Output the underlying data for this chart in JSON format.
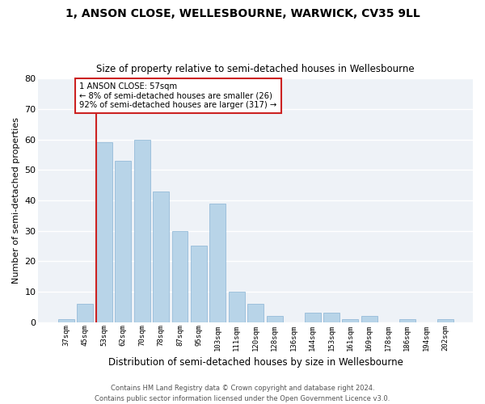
{
  "title": "1, ANSON CLOSE, WELLESBOURNE, WARWICK, CV35 9LL",
  "subtitle": "Size of property relative to semi-detached houses in Wellesbourne",
  "xlabel": "Distribution of semi-detached houses by size in Wellesbourne",
  "ylabel": "Number of semi-detached properties",
  "categories": [
    "37sqm",
    "45sqm",
    "53sqm",
    "62sqm",
    "70sqm",
    "78sqm",
    "87sqm",
    "95sqm",
    "103sqm",
    "111sqm",
    "120sqm",
    "128sqm",
    "136sqm",
    "144sqm",
    "153sqm",
    "161sqm",
    "169sqm",
    "178sqm",
    "186sqm",
    "194sqm",
    "202sqm"
  ],
  "values": [
    1,
    6,
    59,
    53,
    60,
    43,
    30,
    25,
    39,
    10,
    6,
    2,
    0,
    3,
    3,
    1,
    2,
    0,
    1,
    0,
    1
  ],
  "bar_color": "#b8d4e8",
  "bar_edge_color": "#8ab4d4",
  "highlight_color": "#cc2222",
  "annotation_text": "1 ANSON CLOSE: 57sqm\n← 8% of semi-detached houses are smaller (26)\n92% of semi-detached houses are larger (317) →",
  "annotation_box_color": "#ffffff",
  "annotation_box_edge_color": "#cc2222",
  "ylim": [
    0,
    80
  ],
  "yticks": [
    0,
    10,
    20,
    30,
    40,
    50,
    60,
    70,
    80
  ],
  "bg_color": "#eef2f7",
  "footer1": "Contains HM Land Registry data © Crown copyright and database right 2024.",
  "footer2": "Contains public sector information licensed under the Open Government Licence v3.0."
}
